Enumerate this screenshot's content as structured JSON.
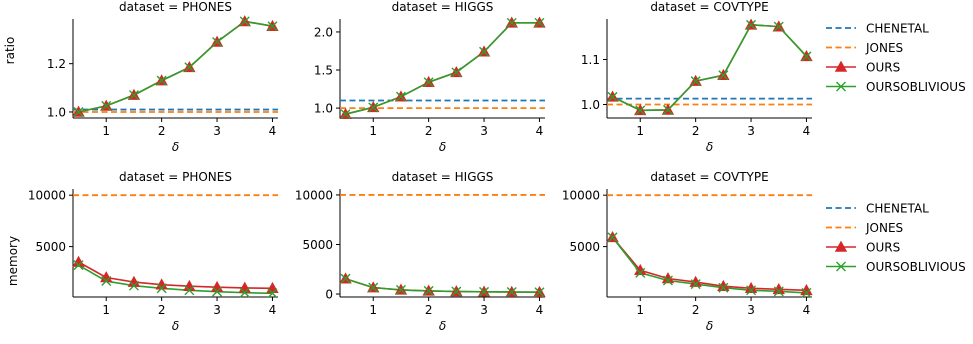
{
  "colors": {
    "CHENETAL": "#1f77b4",
    "JONES": "#ff7f0e",
    "OURS": "#d62728",
    "OURSOBLIVIOUS": "#2ca02c"
  },
  "legend": [
    {
      "name": "CHENETAL",
      "style": "dashed"
    },
    {
      "name": "JONES",
      "style": "dashed"
    },
    {
      "name": "OURS",
      "style": "solid",
      "marker": "triangle"
    },
    {
      "name": "OURSOBLIVIOUS",
      "style": "solid",
      "marker": "x"
    }
  ],
  "chart_data": [
    {
      "type": "line",
      "row": "ratio",
      "title": "dataset = PHONES",
      "xlabel": "δ",
      "ylabel": "ratio",
      "xlim": [
        0.4,
        4.1
      ],
      "ylim": [
        0.975,
        1.385
      ],
      "xticks": [
        1,
        2,
        3,
        4
      ],
      "yticks": [
        1.0,
        1.2
      ],
      "ytick_labels": [
        "1.0",
        "1.2"
      ],
      "x": [
        0.5,
        1.0,
        1.5,
        2.0,
        2.5,
        3.0,
        3.5,
        4.0
      ],
      "hlines": [
        {
          "name": "CHENETAL",
          "y": 1.01
        },
        {
          "name": "JONES",
          "y": 1.0
        }
      ],
      "series": [
        {
          "name": "OURS",
          "values": [
            1.0,
            1.025,
            1.07,
            1.13,
            1.185,
            1.29,
            1.375,
            1.355
          ]
        },
        {
          "name": "OURSOBLIVIOUS",
          "values": [
            1.0,
            1.025,
            1.07,
            1.13,
            1.185,
            1.29,
            1.375,
            1.355
          ]
        }
      ]
    },
    {
      "type": "line",
      "row": "ratio",
      "title": "dataset = HIGGS",
      "xlabel": "δ",
      "ylabel": "",
      "xlim": [
        0.4,
        4.1
      ],
      "ylim": [
        0.87,
        2.17
      ],
      "xticks": [
        1,
        2,
        3,
        4
      ],
      "yticks": [
        1.0,
        1.5,
        2.0
      ],
      "ytick_labels": [
        "1.0",
        "1.5",
        "2.0"
      ],
      "x": [
        0.5,
        1.0,
        1.5,
        2.0,
        2.5,
        3.0,
        3.5,
        4.0
      ],
      "hlines": [
        {
          "name": "CHENETAL",
          "y": 1.1
        },
        {
          "name": "JONES",
          "y": 1.0
        }
      ],
      "series": [
        {
          "name": "OURS",
          "values": [
            0.92,
            1.01,
            1.15,
            1.34,
            1.47,
            1.74,
            2.12,
            2.12
          ]
        },
        {
          "name": "OURSOBLIVIOUS",
          "values": [
            0.92,
            1.01,
            1.15,
            1.34,
            1.47,
            1.74,
            2.12,
            2.12
          ]
        }
      ]
    },
    {
      "type": "line",
      "row": "ratio",
      "title": "dataset = COVTYPE",
      "xlabel": "δ",
      "ylabel": "",
      "xlim": [
        0.4,
        4.1
      ],
      "ylim": [
        0.97,
        1.19
      ],
      "xticks": [
        1,
        2,
        3,
        4
      ],
      "yticks": [
        1.0,
        1.1
      ],
      "ytick_labels": [
        "1.0",
        "1.1"
      ],
      "x": [
        0.5,
        1.0,
        1.5,
        2.0,
        2.5,
        3.0,
        3.5,
        4.0
      ],
      "hlines": [
        {
          "name": "CHENETAL",
          "y": 1.013
        },
        {
          "name": "JONES",
          "y": 1.0
        }
      ],
      "series": [
        {
          "name": "OURS",
          "values": [
            1.017,
            0.987,
            0.988,
            1.052,
            1.065,
            1.177,
            1.173,
            1.107
          ]
        },
        {
          "name": "OURSOBLIVIOUS",
          "values": [
            1.017,
            0.987,
            0.988,
            1.052,
            1.065,
            1.177,
            1.173,
            1.107
          ]
        }
      ]
    },
    {
      "type": "line",
      "row": "memory",
      "title": "dataset = PHONES",
      "xlabel": "δ",
      "ylabel": "memory",
      "xlim": [
        0.4,
        4.1
      ],
      "ylim": [
        100,
        10600
      ],
      "xticks": [
        1,
        2,
        3,
        4
      ],
      "yticks": [
        5000,
        10000
      ],
      "ytick_labels": [
        "5000",
        "10000"
      ],
      "x": [
        0.5,
        1.0,
        1.5,
        2.0,
        2.5,
        3.0,
        3.5,
        4.0
      ],
      "hlines": [
        {
          "name": "JONES",
          "y": 10000
        }
      ],
      "series": [
        {
          "name": "OURS",
          "values": [
            3500,
            2000,
            1550,
            1300,
            1150,
            1050,
            980,
            950
          ]
        },
        {
          "name": "OURSOBLIVIOUS",
          "values": [
            3200,
            1650,
            1200,
            950,
            750,
            620,
            520,
            460
          ]
        }
      ]
    },
    {
      "type": "line",
      "row": "memory",
      "title": "dataset = HIGGS",
      "xlabel": "δ",
      "ylabel": "",
      "xlim": [
        0.4,
        4.1
      ],
      "ylim": [
        -300,
        10600
      ],
      "xticks": [
        1,
        2,
        3,
        4
      ],
      "yticks": [
        0,
        5000,
        10000
      ],
      "ytick_labels": [
        "0",
        "5000",
        "10000"
      ],
      "x": [
        0.5,
        1.0,
        1.5,
        2.0,
        2.5,
        3.0,
        3.5,
        4.0
      ],
      "hlines": [
        {
          "name": "JONES",
          "y": 10000
        }
      ],
      "series": [
        {
          "name": "OURS",
          "values": [
            1550,
            650,
            420,
            320,
            260,
            220,
            200,
            180
          ]
        },
        {
          "name": "OURSOBLIVIOUS",
          "values": [
            1550,
            650,
            420,
            320,
            260,
            220,
            200,
            180
          ]
        }
      ]
    },
    {
      "type": "line",
      "row": "memory",
      "title": "dataset = COVTYPE",
      "xlabel": "δ",
      "ylabel": "",
      "xlim": [
        0.4,
        4.1
      ],
      "ylim": [
        100,
        10600
      ],
      "xticks": [
        1,
        2,
        3,
        4
      ],
      "yticks": [
        5000,
        10000
      ],
      "ytick_labels": [
        "5000",
        "10000"
      ],
      "x": [
        0.5,
        1.0,
        1.5,
        2.0,
        2.5,
        3.0,
        3.5,
        4.0
      ],
      "hlines": [
        {
          "name": "JONES",
          "y": 10000
        }
      ],
      "series": [
        {
          "name": "OURS",
          "values": [
            5900,
            2700,
            1900,
            1550,
            1150,
            950,
            850,
            750
          ]
        },
        {
          "name": "OURSOBLIVIOUS",
          "values": [
            5900,
            2450,
            1700,
            1350,
            1000,
            750,
            650,
            500
          ]
        }
      ]
    }
  ]
}
